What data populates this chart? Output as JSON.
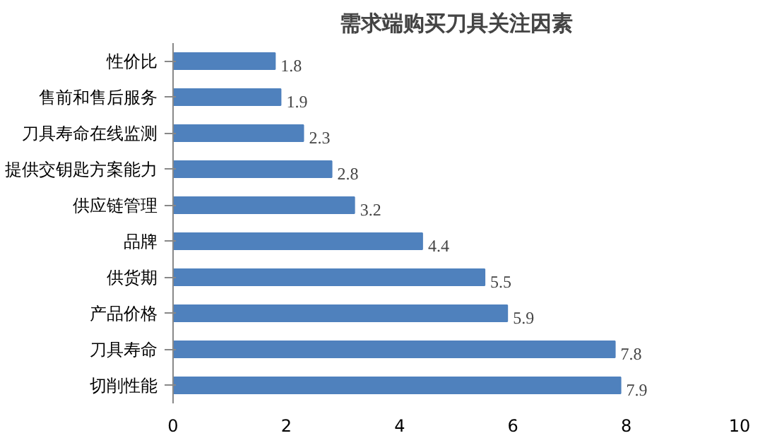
{
  "chart_data": {
    "type": "bar",
    "orientation": "horizontal",
    "title": "需求端购买刀具关注因素",
    "categories": [
      "性价比",
      "售前和售后服务",
      "刀具寿命在线监测",
      "提供交钥匙方案能力",
      "供应链管理",
      "品牌",
      "供货期",
      "产品价格",
      "刀具寿命",
      "切削性能"
    ],
    "values": [
      1.8,
      1.9,
      2.3,
      2.8,
      3.2,
      4.4,
      5.5,
      5.9,
      7.8,
      7.9
    ],
    "color": "#4f81bd",
    "xlim": [
      0,
      10
    ],
    "xticks": [
      0,
      2,
      4,
      6,
      8,
      10
    ],
    "data_labels": true,
    "grid": false
  }
}
